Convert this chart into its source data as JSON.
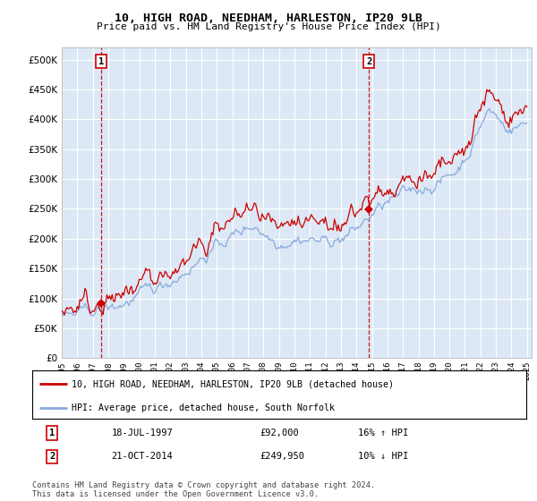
{
  "title": "10, HIGH ROAD, NEEDHAM, HARLESTON, IP20 9LB",
  "subtitle": "Price paid vs. HM Land Registry's House Price Index (HPI)",
  "legend_line1": "10, HIGH ROAD, NEEDHAM, HARLESTON, IP20 9LB (detached house)",
  "legend_line2": "HPI: Average price, detached house, South Norfolk",
  "transaction1_label": "1",
  "transaction1_date": "18-JUL-1997",
  "transaction1_price": "£92,000",
  "transaction1_hpi": "16% ↑ HPI",
  "transaction2_label": "2",
  "transaction2_date": "21-OCT-2014",
  "transaction2_price": "£249,950",
  "transaction2_hpi": "10% ↓ HPI",
  "footnote": "Contains HM Land Registry data © Crown copyright and database right 2024.\nThis data is licensed under the Open Government Licence v3.0.",
  "ylim": [
    0,
    520000
  ],
  "yticks": [
    0,
    50000,
    100000,
    150000,
    200000,
    250000,
    300000,
    350000,
    400000,
    450000,
    500000
  ],
  "red_line_color": "#cc0000",
  "blue_line_color": "#88aadd",
  "bg_color": "#dce8f5",
  "grid_color": "#ffffff",
  "marker1_year": 1997.55,
  "marker1_price": 92000,
  "marker2_year": 2014.8,
  "marker2_price": 249950,
  "vline1_year": 1997.55,
  "vline2_year": 2014.8,
  "xmin": 1995.0,
  "xmax": 2025.3
}
